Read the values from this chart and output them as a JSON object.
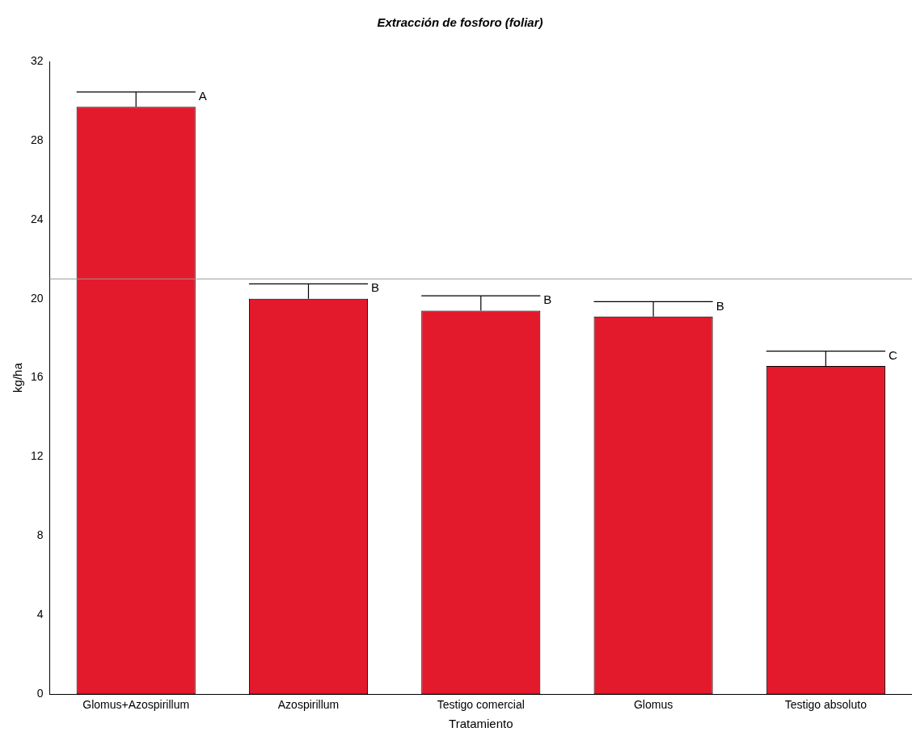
{
  "chart_data": {
    "type": "bar",
    "title": "Extracción de fosforo (foliar)",
    "xlabel": "Tratamiento",
    "ylabel": "kg/ha",
    "categories": [
      "Glomus+Azospirillum",
      "Azospirillum",
      "Testigo comercial",
      "Glomus",
      "Testigo absoluto"
    ],
    "values": [
      29.7,
      20.0,
      19.4,
      19.1,
      16.6
    ],
    "errors": [
      0.75,
      0.75,
      0.75,
      0.75,
      0.75
    ],
    "color": "#e3192c",
    "ylim": [
      0,
      32
    ],
    "yticks": [
      0,
      4,
      8,
      12,
      16,
      20,
      24,
      28,
      32
    ],
    "grid": false,
    "ref_lines": [
      {
        "axis": "y",
        "value": 21,
        "color": "#999999"
      }
    ],
    "annotations": [
      "A",
      "B",
      "B",
      "B",
      "C"
    ]
  }
}
